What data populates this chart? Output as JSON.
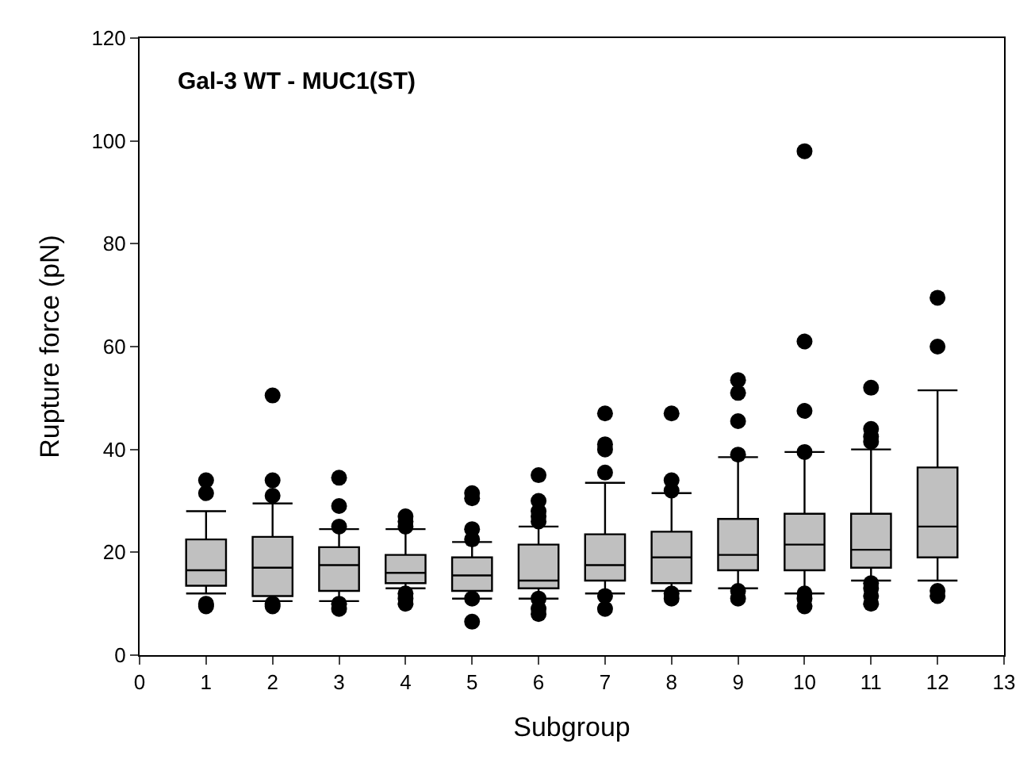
{
  "chart_data": {
    "type": "box",
    "title": "Gal-3 WT - MUC1(ST)",
    "xlabel": "Subgroup",
    "ylabel": "Rupture force (pN)",
    "x": [
      1,
      2,
      3,
      4,
      5,
      6,
      7,
      8,
      9,
      10,
      11,
      12
    ],
    "color": "#c0c0c0",
    "boxes": [
      {
        "low": 12,
        "q1": 13.5,
        "median": 16.5,
        "q3": 22.5,
        "high": 28,
        "outliers": [
          34,
          31.5,
          10,
          9.5
        ]
      },
      {
        "low": 10.5,
        "q1": 11.5,
        "median": 17,
        "q3": 23,
        "high": 29.5,
        "outliers": [
          50.5,
          34,
          31,
          10,
          9.5
        ]
      },
      {
        "low": 10.5,
        "q1": 12.5,
        "median": 17.5,
        "q3": 21,
        "high": 24.5,
        "outliers": [
          34.5,
          29,
          25,
          10,
          9
        ]
      },
      {
        "low": 13,
        "q1": 14,
        "median": 16,
        "q3": 19.5,
        "high": 24.5,
        "outliers": [
          27,
          26,
          25,
          12,
          11,
          10
        ]
      },
      {
        "low": 11,
        "q1": 12.5,
        "median": 15.5,
        "q3": 19,
        "high": 22,
        "outliers": [
          31.5,
          30.5,
          24.5,
          22.5,
          11,
          6.5
        ]
      },
      {
        "low": 11,
        "q1": 13,
        "median": 14.5,
        "q3": 21.5,
        "high": 25,
        "outliers": [
          35,
          30,
          28,
          27,
          26,
          11,
          9,
          8
        ]
      },
      {
        "low": 12,
        "q1": 14.5,
        "median": 17.5,
        "q3": 23.5,
        "high": 33.5,
        "outliers": [
          47,
          41,
          40,
          35.5,
          11.5,
          9
        ]
      },
      {
        "low": 12.5,
        "q1": 14,
        "median": 19,
        "q3": 24,
        "high": 31.5,
        "outliers": [
          47,
          34,
          32,
          12,
          11
        ]
      },
      {
        "low": 13,
        "q1": 16.5,
        "median": 19.5,
        "q3": 26.5,
        "high": 38.5,
        "outliers": [
          53.5,
          51,
          45.5,
          39,
          12.5,
          11
        ]
      },
      {
        "low": 12,
        "q1": 16.5,
        "median": 21.5,
        "q3": 27.5,
        "high": 39.5,
        "outliers": [
          98,
          61,
          47.5,
          39.5,
          12,
          11,
          9.5
        ]
      },
      {
        "low": 14.5,
        "q1": 17,
        "median": 20.5,
        "q3": 27.5,
        "high": 40,
        "outliers": [
          52,
          44,
          42.5,
          41.5,
          14,
          13,
          11.5,
          10
        ]
      },
      {
        "low": 14.5,
        "q1": 19,
        "median": 25,
        "q3": 36.5,
        "high": 51.5,
        "outliers": [
          69.5,
          60,
          12.5,
          11.5
        ]
      }
    ],
    "xlim": [
      0,
      13
    ],
    "xticks": [
      0,
      1,
      2,
      3,
      4,
      5,
      6,
      7,
      8,
      9,
      10,
      11,
      12,
      13
    ],
    "ylim": [
      0,
      120
    ],
    "yticks": [
      0,
      20,
      40,
      60,
      80,
      100,
      120
    ]
  }
}
